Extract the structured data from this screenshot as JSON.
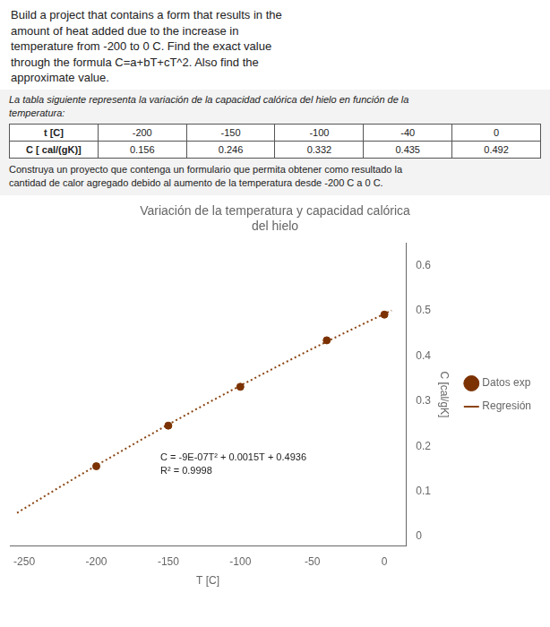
{
  "header": {
    "text": "Build a project that contains a form that results in the\namount of heat added due to the increase in\ntemperature from -200 to 0 C. Find the exact value\nthrough the formula C=a+bT+cT^2. Also find the\napproximate value.",
    "table_title": "La tabla siguiente representa la variación de la capacidad calórica del hielo en función de la\ntemperatura:",
    "table": [
      [
        "t [C]",
        "-200",
        "-150",
        "-100",
        "-40",
        "0"
      ],
      [
        "C [ cal/(gK)]",
        "0.156",
        "0.246",
        "0.332",
        "0.435",
        "0.492"
      ]
    ],
    "footer": "Construya un proyecto que contenga un formulario que permita obtener como resultado la\ncantidad de calor agregado  debido al aumento de la temperatura desde -200 C a 0 C."
  },
  "chart_data": {
    "type": "scatter",
    "title": [
      "Variación de la temperatura y capacidad calórica",
      "del hielo"
    ],
    "x_label": "T [C]",
    "y_label": "C [cal/gK]",
    "series": [
      {
        "name": "Datos exp",
        "type": "scatter",
        "color": "#7B3100",
        "marker": "circle",
        "x": [
          -200,
          -150,
          -100,
          -40,
          0
        ],
        "values": [
          0.156,
          0.246,
          0.332,
          0.435,
          0.492
        ]
      },
      {
        "name": "Regresión",
        "type": "line",
        "color": "#8B4513",
        "line_style": "dotted",
        "x": [
          -255,
          -250,
          -225,
          -200,
          -175,
          -150,
          -125,
          -100,
          -75,
          -50,
          -25,
          0,
          5
        ],
        "values": [
          0.0525775,
          0.06235,
          0.1105375,
          0.1576,
          0.2035375,
          0.24835,
          0.2920375,
          0.3346,
          0.3760375,
          0.41635,
          0.4555375,
          0.4936,
          0.5010775
        ]
      }
    ],
    "xlim": [
      -260,
      15
    ],
    "ylim": [
      -0.02,
      0.65
    ],
    "xticks": [
      -250,
      -200,
      -150,
      -100,
      -50,
      0
    ],
    "yticks": [
      0,
      0.1,
      0.2,
      0.3,
      0.4,
      0.5,
      0.6
    ],
    "grid": false,
    "legend": "right",
    "annotations": [
      "C = -9E-07T² + 0.0015T + 0.4936",
      "R² = 0.9998"
    ]
  }
}
